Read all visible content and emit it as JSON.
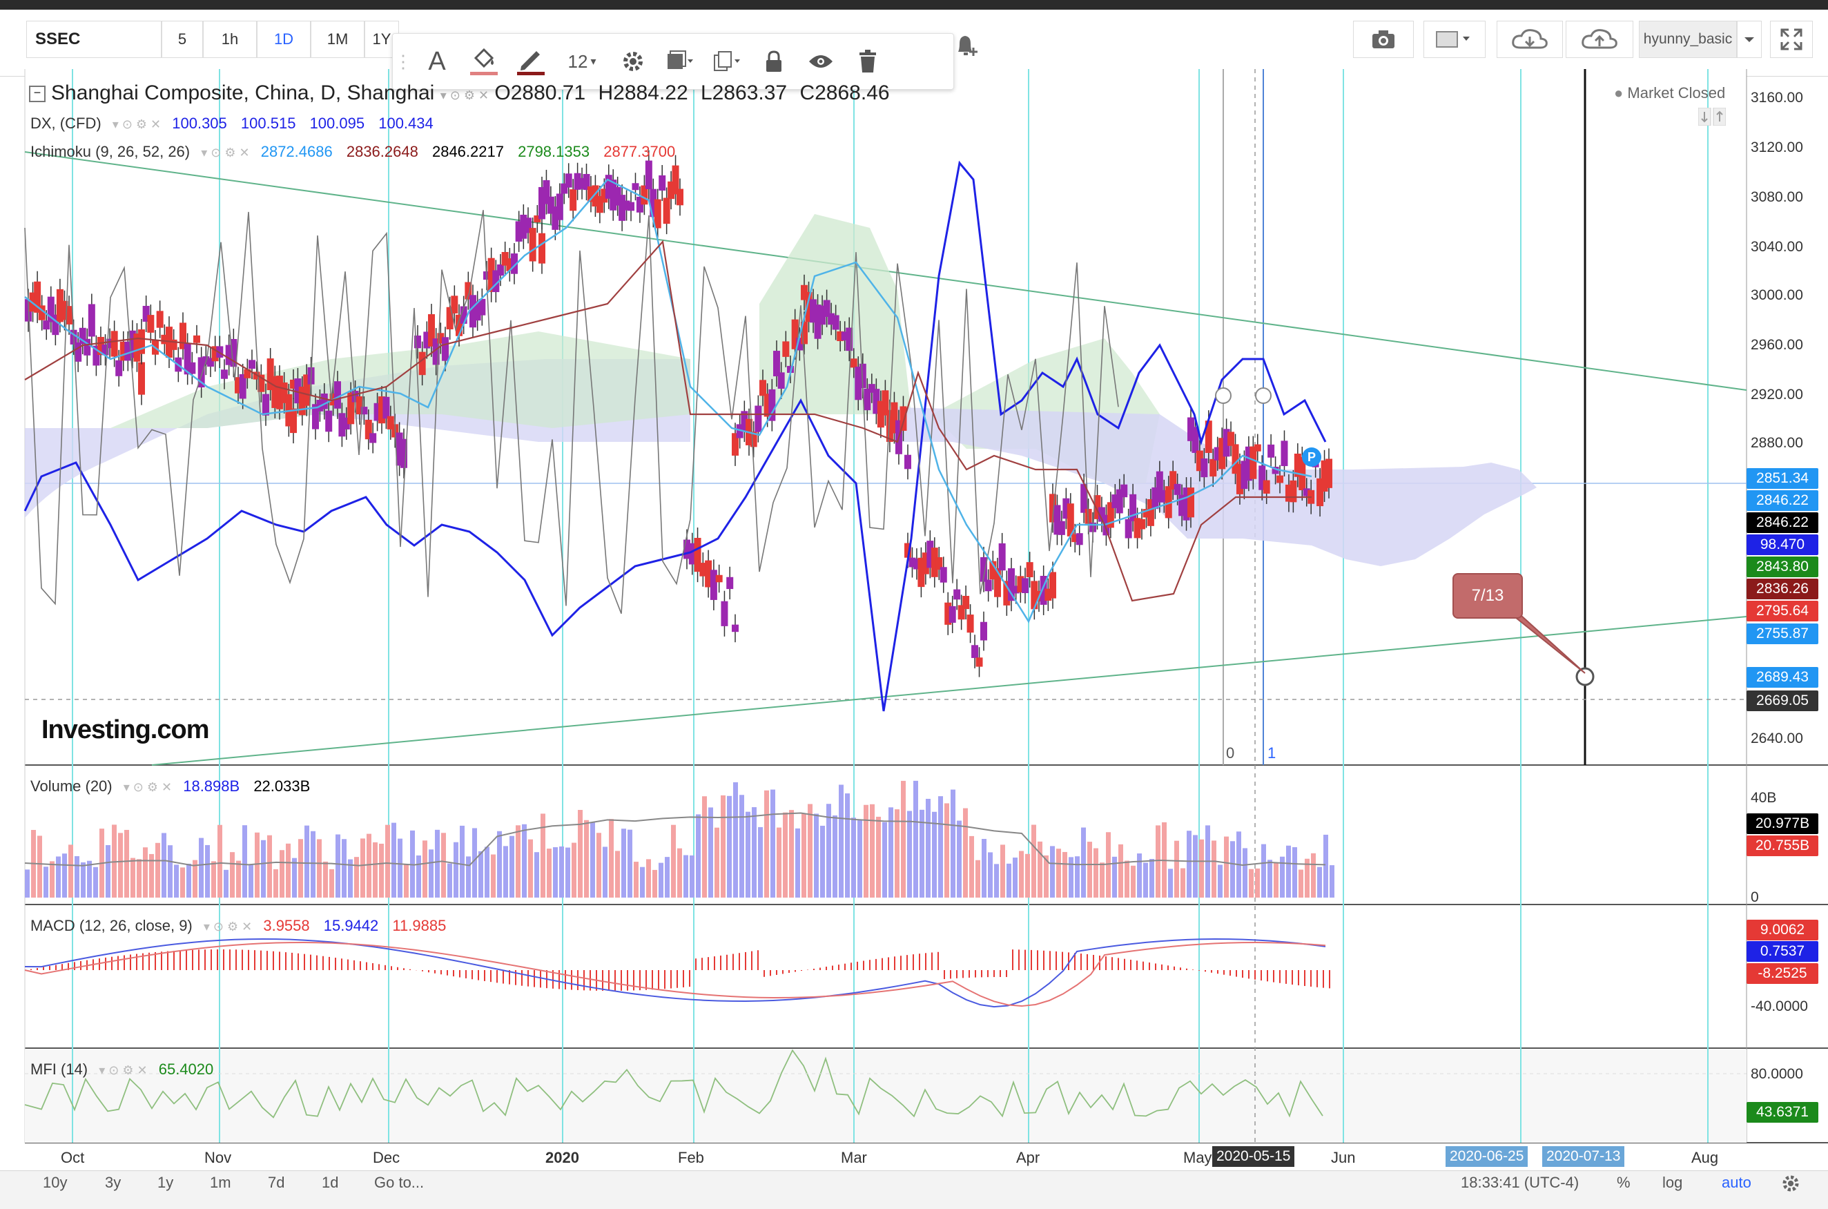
{
  "toolbar": {
    "symbol": "SSEC",
    "intervals": [
      "5",
      "1h",
      "1D",
      "1M",
      "1Y"
    ],
    "active_interval": "1D",
    "draw_font_size": "12",
    "user": "hyunny_basic"
  },
  "legend": {
    "main": {
      "name": "Shanghai Composite, China, D, Shanghai",
      "o": "O2880.71",
      "h": "H2884.22",
      "l": "L2863.37",
      "c": "C2868.46"
    },
    "dx": {
      "name": "DX, (CFD)",
      "v1": "100.305",
      "v2": "100.515",
      "v3": "100.095",
      "v4": "100.434"
    },
    "ichimoku": {
      "name": "Ichimoku (9, 26, 52, 26)",
      "v1": "2872.4686",
      "v2": "2836.2648",
      "v3": "2846.2217",
      "v4": "2798.1353",
      "v5": "2877.3700"
    },
    "market_status": "Market Closed",
    "volume": {
      "name": "Volume (20)",
      "v1": "18.898B",
      "v2": "22.033B"
    },
    "macd": {
      "name": "MACD (12, 26, close, 9)",
      "v1": "3.9558",
      "v2": "15.9442",
      "v3": "11.9885"
    },
    "mfi": {
      "name": "MFI (14)",
      "v1": "65.4020"
    }
  },
  "price_axis": [
    "3160.00",
    "3120.00",
    "3080.00",
    "3040.00",
    "3000.00",
    "2960.00",
    "2920.00",
    "2880.00",
    "2640.00"
  ],
  "price_labels": [
    {
      "text": "2851.34",
      "color": "#2196f3"
    },
    {
      "text": "2846.22",
      "color": "#2196f3"
    },
    {
      "text": "2846.22",
      "color": "#000000"
    },
    {
      "text": "98.470",
      "color": "#1e22e6"
    },
    {
      "text": "2843.80",
      "color": "#1b8a1b"
    },
    {
      "text": "2836.26",
      "color": "#8b1a1a"
    },
    {
      "text": "2795.64",
      "color": "#e53935"
    },
    {
      "text": "2755.87",
      "color": "#2196f3"
    },
    {
      "text": "2689.43",
      "color": "#2196f3"
    },
    {
      "text": "2669.05",
      "color": "#333333"
    }
  ],
  "volume_axis": [
    "40B",
    "0"
  ],
  "volume_labels": [
    {
      "text": "20.977B",
      "color": "#000000"
    },
    {
      "text": "20.755B",
      "color": "#e53935"
    }
  ],
  "macd_axis": [
    "-40.0000"
  ],
  "macd_labels": [
    {
      "text": "9.0062",
      "color": "#e53935"
    },
    {
      "text": "0.7537",
      "color": "#1e22e6"
    },
    {
      "text": "-8.2525",
      "color": "#e53935"
    }
  ],
  "mfi_axis": [
    "80.0000"
  ],
  "mfi_labels": [
    {
      "text": "43.6371",
      "color": "#1b8a1b"
    }
  ],
  "time_axis": [
    "Oct",
    "Nov",
    "Dec",
    "2020",
    "Feb",
    "Mar",
    "Apr",
    "May",
    "Jun",
    "Aug"
  ],
  "time_highlights": [
    "2020-05-15",
    "2020-06-25",
    "2020-07-13"
  ],
  "annotations": {
    "callout": "7/13",
    "fib0": "0",
    "fib1": "1",
    "p_marker": "P"
  },
  "branding": {
    "logo": "Investing.com"
  },
  "bottom": {
    "ranges": [
      "10y",
      "3y",
      "1y",
      "1m",
      "7d",
      "1d"
    ],
    "goto": "Go to...",
    "time": "18:33:41 (UTC-4)",
    "percent": "%",
    "log": "log",
    "auto": "auto"
  },
  "colors": {
    "bull": "#e53935",
    "bear": "#9c27b0",
    "dx_line": "#1e22e6",
    "tenkan": "#4fb3e8",
    "kijun": "#a04040",
    "cloud_green": "#cfe8cf",
    "cloud_blue": "#d6d6f5",
    "vertical_lines": "#7fe3e3",
    "trend": "#5fb38a"
  }
}
